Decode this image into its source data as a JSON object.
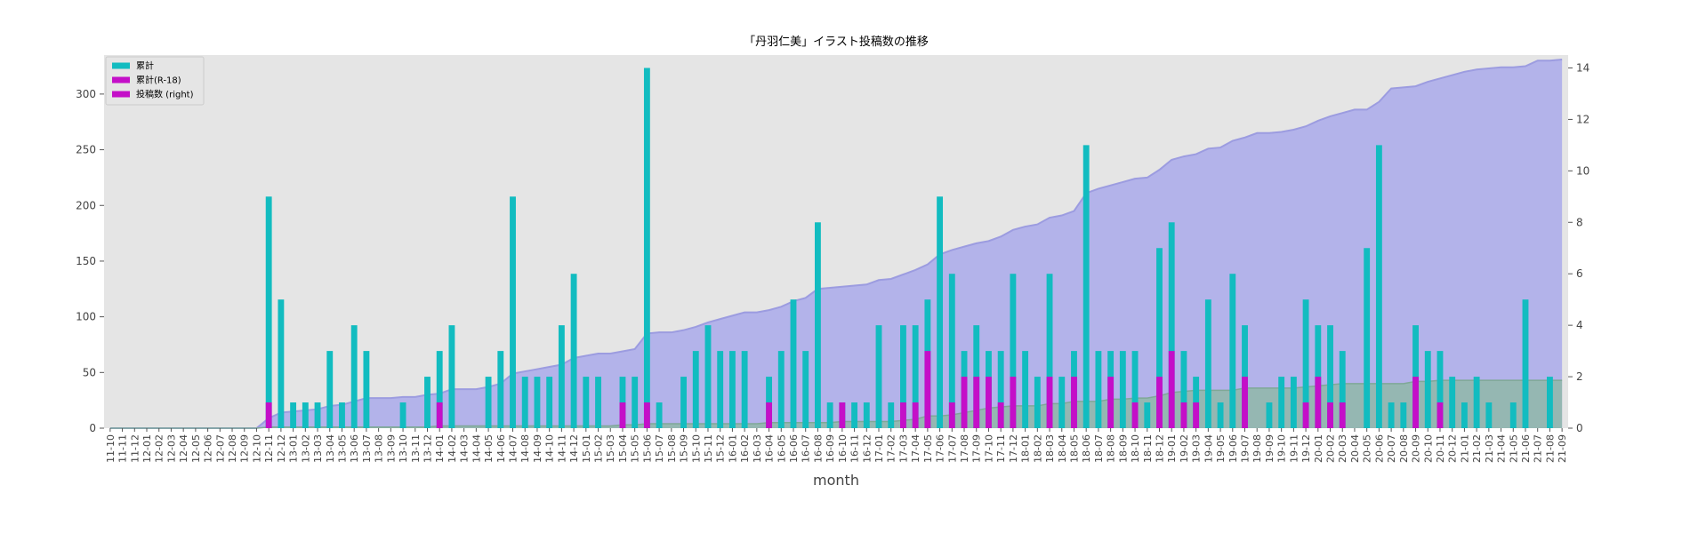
{
  "chart_data": {
    "type": "bar",
    "title": "「丹羽仁美」イラスト投稿数の推移",
    "xlabel": "month",
    "ylabel": "",
    "ylim": [
      0,
      335
    ],
    "y2lim": [
      0,
      14.5
    ],
    "y_ticks": [
      0,
      50,
      100,
      150,
      200,
      250,
      300
    ],
    "y2_ticks": [
      0,
      2,
      4,
      6,
      8,
      10,
      12,
      14
    ],
    "legend_position": "top-left",
    "grid": false,
    "colors": {
      "plot_bg": "#e5e5e5",
      "cumulative_area": "#b3b3ea",
      "cumulative_line": "#9c9ce0",
      "r18_cumulative_area": "#8fb7a8",
      "posts_bar": "#12bcc0",
      "r18_bar": "#c40fc8"
    },
    "legend": [
      {
        "label": "累計",
        "color": "#12bcc0"
      },
      {
        "label": "累計(R-18)",
        "color": "#c40fc8"
      },
      {
        "label": "投稿数 (right)",
        "color": "#c40fc8"
      }
    ],
    "categories": [
      "11-10",
      "11-11",
      "11-12",
      "12-01",
      "12-02",
      "12-03",
      "12-04",
      "12-05",
      "12-06",
      "12-07",
      "12-08",
      "12-09",
      "12-10",
      "12-11",
      "12-12",
      "13-01",
      "13-02",
      "13-03",
      "13-04",
      "13-05",
      "13-06",
      "13-07",
      "13-08",
      "13-09",
      "13-10",
      "13-11",
      "13-12",
      "14-01",
      "14-02",
      "14-03",
      "14-04",
      "14-05",
      "14-06",
      "14-07",
      "14-08",
      "14-09",
      "14-10",
      "14-11",
      "14-12",
      "15-01",
      "15-02",
      "15-03",
      "15-04",
      "15-05",
      "15-06",
      "15-07",
      "15-08",
      "15-09",
      "15-10",
      "15-11",
      "15-12",
      "16-01",
      "16-02",
      "16-03",
      "16-04",
      "16-05",
      "16-06",
      "16-07",
      "16-08",
      "16-09",
      "16-10",
      "16-11",
      "16-12",
      "17-01",
      "17-02",
      "17-03",
      "17-04",
      "17-05",
      "17-06",
      "17-07",
      "17-08",
      "17-09",
      "17-10",
      "17-11",
      "17-12",
      "18-01",
      "18-02",
      "18-03",
      "18-04",
      "18-05",
      "18-06",
      "18-07",
      "18-08",
      "18-09",
      "18-10",
      "18-11",
      "18-12",
      "19-01",
      "19-02",
      "19-03",
      "19-04",
      "19-05",
      "19-06",
      "19-07",
      "19-08",
      "19-09",
      "19-10",
      "19-11",
      "19-12",
      "20-01",
      "20-02",
      "20-03",
      "20-04",
      "20-05",
      "20-06",
      "20-07",
      "20-08",
      "20-09",
      "20-10",
      "20-11",
      "20-12",
      "21-01",
      "21-02",
      "21-03",
      "21-04",
      "21-05",
      "21-06",
      "21-07",
      "21-08",
      "21-09"
    ],
    "series": [
      {
        "name": "累計",
        "kind": "area",
        "axis": "left",
        "values": [
          0,
          0,
          0,
          0,
          0,
          0,
          0,
          0,
          0,
          0,
          0,
          0,
          0,
          9,
          14,
          15,
          16,
          17,
          20,
          21,
          24,
          27,
          27,
          27,
          28,
          28,
          30,
          31,
          35,
          35,
          35,
          37,
          40,
          49,
          51,
          53,
          55,
          57,
          63,
          65,
          67,
          67,
          69,
          71,
          85,
          86,
          86,
          88,
          91,
          95,
          98,
          101,
          104,
          104,
          106,
          109,
          114,
          117,
          125,
          126,
          127,
          128,
          129,
          133,
          134,
          138,
          142,
          147,
          156,
          160,
          163,
          166,
          168,
          172,
          178,
          181,
          183,
          189,
          191,
          195,
          211,
          215,
          218,
          221,
          224,
          225,
          232,
          241,
          244,
          246,
          251,
          252,
          258,
          261,
          265,
          265,
          266,
          268,
          271,
          276,
          280,
          283,
          286,
          286,
          293,
          305,
          306,
          307,
          311,
          314,
          317,
          320,
          322,
          323,
          324,
          324,
          325,
          330,
          330,
          331
        ]
      },
      {
        "name": "累計(R-18)",
        "kind": "area",
        "axis": "left",
        "values": [
          0,
          0,
          0,
          0,
          0,
          0,
          0,
          0,
          0,
          0,
          0,
          0,
          0,
          1,
          1,
          1,
          1,
          1,
          1,
          1,
          1,
          1,
          1,
          1,
          1,
          1,
          1,
          2,
          2,
          2,
          2,
          2,
          2,
          2,
          2,
          2,
          2,
          2,
          2,
          2,
          2,
          2,
          3,
          3,
          4,
          4,
          4,
          4,
          4,
          4,
          4,
          4,
          4,
          4,
          5,
          5,
          5,
          5,
          5,
          5,
          6,
          6,
          6,
          6,
          6,
          7,
          8,
          11,
          11,
          12,
          14,
          16,
          18,
          19,
          20,
          20,
          20,
          22,
          22,
          24,
          24,
          24,
          26,
          26,
          27,
          27,
          29,
          32,
          33,
          34,
          34,
          34,
          34,
          36,
          36,
          36,
          36,
          36,
          37,
          38,
          39,
          40,
          40,
          40,
          40,
          40,
          40,
          42,
          42,
          43,
          43,
          43,
          43,
          43,
          43,
          43,
          43,
          43,
          43,
          43
        ]
      },
      {
        "name": "投稿数",
        "kind": "bar",
        "axis": "right",
        "values": [
          0,
          0,
          0,
          0,
          0,
          0,
          0,
          0,
          0,
          0,
          0,
          0,
          0,
          9,
          5,
          1,
          1,
          1,
          3,
          1,
          4,
          3,
          0,
          0,
          1,
          0,
          2,
          3,
          4,
          0,
          0,
          2,
          3,
          9,
          2,
          2,
          2,
          4,
          6,
          2,
          2,
          0,
          2,
          2,
          14,
          1,
          0,
          2,
          3,
          4,
          3,
          3,
          3,
          0,
          2,
          3,
          5,
          3,
          8,
          1,
          1,
          1,
          1,
          4,
          1,
          4,
          4,
          5,
          9,
          6,
          3,
          4,
          3,
          3,
          6,
          3,
          2,
          6,
          2,
          3,
          11,
          3,
          3,
          3,
          3,
          1,
          7,
          8,
          3,
          2,
          5,
          1,
          6,
          4,
          0,
          1,
          2,
          2,
          5,
          4,
          4,
          3,
          0,
          7,
          11,
          1,
          1,
          4,
          3,
          3,
          2,
          1,
          2,
          1,
          0,
          1,
          5,
          0,
          2,
          0
        ]
      },
      {
        "name": "R-18",
        "kind": "bar",
        "axis": "right",
        "values": [
          0,
          0,
          0,
          0,
          0,
          0,
          0,
          0,
          0,
          0,
          0,
          0,
          0,
          1,
          0,
          0,
          0,
          0,
          0,
          0,
          0,
          0,
          0,
          0,
          0,
          0,
          0,
          1,
          0,
          0,
          0,
          0,
          0,
          0,
          0,
          0,
          0,
          0,
          0,
          0,
          0,
          0,
          1,
          0,
          1,
          0,
          0,
          0,
          0,
          0,
          0,
          0,
          0,
          0,
          1,
          0,
          0,
          0,
          0,
          0,
          1,
          0,
          0,
          0,
          0,
          1,
          1,
          3,
          0,
          1,
          2,
          2,
          2,
          1,
          2,
          0,
          0,
          2,
          0,
          2,
          0,
          0,
          2,
          0,
          1,
          0,
          2,
          3,
          1,
          1,
          0,
          0,
          0,
          2,
          0,
          0,
          0,
          0,
          1,
          2,
          1,
          1,
          0,
          0,
          0,
          0,
          0,
          2,
          0,
          1,
          0,
          0,
          0,
          0,
          0,
          0,
          0,
          0,
          0,
          0
        ]
      }
    ]
  }
}
